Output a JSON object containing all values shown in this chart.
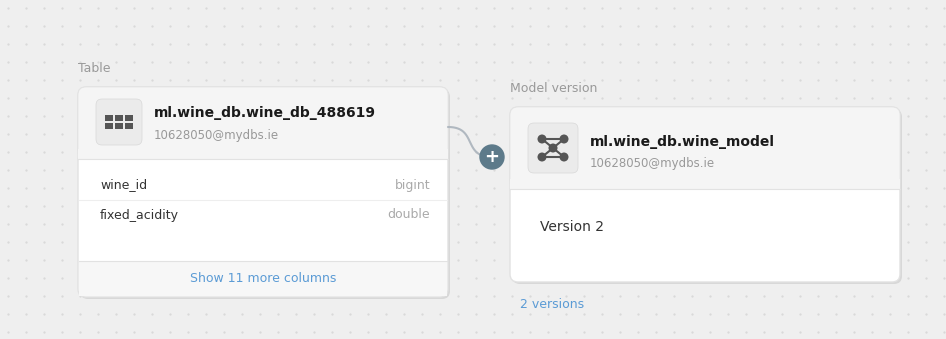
{
  "bg_color": "#efefef",
  "bg_dot_color": "#d8d8d8",
  "card_bg": "#ffffff",
  "card_border": "#e2e2e2",
  "header_bg": "#f5f5f5",
  "icon_bg": "#ebebeb",
  "icon_color": "#555555",
  "label_color": "#999999",
  "title_color": "#1a1a1a",
  "subtitle_color": "#999999",
  "field_color": "#333333",
  "type_color": "#aaaaaa",
  "button_text": "#5b9bd5",
  "connector_color": "#b0b8c0",
  "plus_bg": "#5d7a8a",
  "plus_color": "#ffffff",
  "version_label_color": "#5b9bd5",
  "table_label": "Table",
  "table_name": "ml.wine_db.wine_db_488619",
  "table_owner": "10628050@mydbs.ie",
  "fields": [
    {
      "name": "wine_id",
      "type": "bigint"
    },
    {
      "name": "fixed_acidity",
      "type": "double"
    }
  ],
  "show_more_text": "Show 11 more columns",
  "model_label": "Model version",
  "model_name": "ml.wine_db.wine_model",
  "model_owner": "10628050@mydbs.ie",
  "model_version": "Version 2",
  "versions_text": "2 versions"
}
